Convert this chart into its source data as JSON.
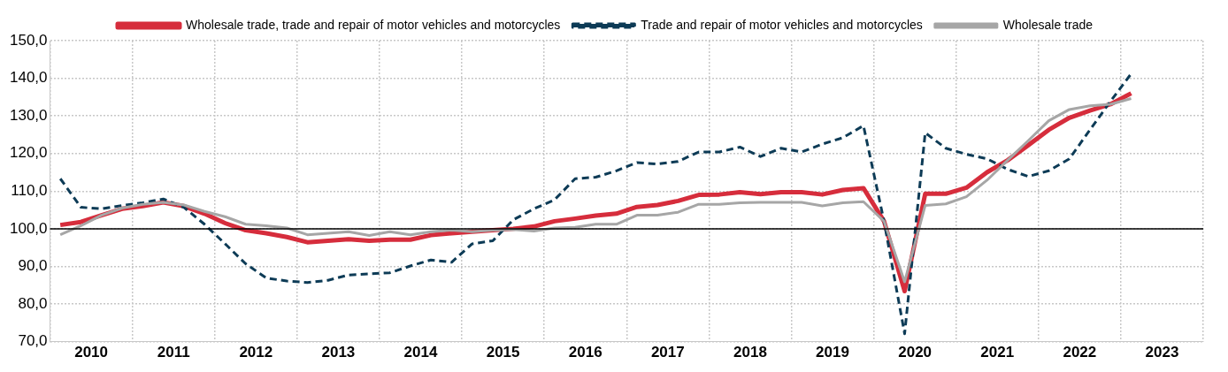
{
  "chart_data": {
    "type": "line",
    "x": [
      2010.125,
      2010.375,
      2010.625,
      2010.875,
      2011.125,
      2011.375,
      2011.625,
      2011.875,
      2012.125,
      2012.375,
      2012.625,
      2012.875,
      2013.125,
      2013.375,
      2013.625,
      2013.875,
      2014.125,
      2014.375,
      2014.625,
      2014.875,
      2015.125,
      2015.375,
      2015.625,
      2015.875,
      2016.125,
      2016.375,
      2016.625,
      2016.875,
      2017.125,
      2017.375,
      2017.625,
      2017.875,
      2018.125,
      2018.375,
      2018.625,
      2018.875,
      2019.125,
      2019.375,
      2019.625,
      2019.875,
      2020.125,
      2020.375,
      2020.625,
      2020.875,
      2021.125,
      2021.375,
      2021.625,
      2021.875,
      2022.125,
      2022.375,
      2022.625,
      2022.875,
      2023.125
    ],
    "series": [
      {
        "name": "Wholesale trade, trade and repair of motor vehicles and motorcycles",
        "color": "#d62d3c",
        "line_style": "solid",
        "values": [
          101.0,
          101.8,
          103.6,
          105.3,
          106.0,
          107.0,
          106.0,
          104.0,
          101.5,
          99.6,
          98.8,
          97.8,
          96.4,
          96.8,
          97.2,
          96.8,
          97.1,
          97.1,
          98.3,
          98.8,
          99.2,
          99.6,
          100.0,
          100.6,
          102.0,
          102.7,
          103.5,
          104.0,
          105.8,
          106.3,
          107.4,
          109.0,
          109.1,
          109.7,
          109.2,
          109.7,
          109.7,
          109.1,
          110.3,
          110.8,
          102.0,
          83.4,
          109.3,
          109.3,
          110.9,
          115.0,
          118.2,
          122.2,
          126.3,
          129.5,
          131.4,
          133.1,
          136.0
        ]
      },
      {
        "name": "Trade and repair of motor vehicles and motorcycles",
        "color": "#0d3b56",
        "line_style": "dashed",
        "values": [
          113.3,
          105.7,
          105.3,
          106.2,
          106.9,
          107.9,
          105.7,
          101.2,
          96.0,
          90.7,
          86.9,
          86.1,
          85.7,
          86.3,
          87.7,
          88.0,
          88.3,
          90.1,
          91.7,
          91.1,
          96.0,
          96.8,
          102.4,
          105.3,
          107.7,
          113.3,
          113.7,
          115.4,
          117.6,
          117.2,
          117.9,
          120.4,
          120.4,
          121.7,
          119.2,
          121.4,
          120.4,
          122.5,
          124.2,
          127.4,
          102.0,
          72.1,
          125.5,
          121.4,
          119.8,
          118.6,
          115.8,
          113.9,
          115.4,
          118.6,
          126.3,
          133.9,
          141.2
        ]
      },
      {
        "name": "Wholesale trade",
        "color": "#a6a6a6",
        "line_style": "solid",
        "values": [
          98.4,
          100.8,
          103.6,
          105.5,
          106.5,
          107.0,
          106.3,
          104.6,
          103.2,
          101.2,
          100.8,
          100.2,
          98.4,
          98.8,
          99.2,
          98.2,
          99.2,
          98.4,
          99.2,
          99.6,
          99.2,
          99.6,
          99.8,
          99.4,
          100.2,
          100.4,
          101.2,
          101.2,
          103.6,
          103.6,
          104.4,
          106.5,
          106.5,
          106.9,
          107.0,
          107.0,
          107.0,
          106.1,
          106.9,
          107.2,
          102.0,
          85.9,
          106.2,
          106.6,
          108.5,
          112.9,
          118.2,
          123.4,
          128.7,
          131.7,
          132.7,
          133.1,
          134.6
        ]
      }
    ],
    "xlim": [
      2010,
      2024
    ],
    "xticks": [
      {
        "value": 2010,
        "label": null
      },
      {
        "value": 2010.5,
        "label": "2010"
      },
      {
        "value": 2011,
        "label": null
      },
      {
        "value": 2011.5,
        "label": "2011"
      },
      {
        "value": 2012,
        "label": null
      },
      {
        "value": 2012.5,
        "label": "2012"
      },
      {
        "value": 2013,
        "label": null
      },
      {
        "value": 2013.5,
        "label": "2013"
      },
      {
        "value": 2014,
        "label": null
      },
      {
        "value": 2014.5,
        "label": "2014"
      },
      {
        "value": 2015,
        "label": null
      },
      {
        "value": 2015.5,
        "label": "2015"
      },
      {
        "value": 2016,
        "label": null
      },
      {
        "value": 2016.5,
        "label": "2016"
      },
      {
        "value": 2017,
        "label": null
      },
      {
        "value": 2017.5,
        "label": "2017"
      },
      {
        "value": 2018,
        "label": null
      },
      {
        "value": 2018.5,
        "label": "2018"
      },
      {
        "value": 2019,
        "label": null
      },
      {
        "value": 2019.5,
        "label": "2019"
      },
      {
        "value": 2020,
        "label": null
      },
      {
        "value": 2020.5,
        "label": "2020"
      },
      {
        "value": 2021,
        "label": null
      },
      {
        "value": 2021.5,
        "label": "2021"
      },
      {
        "value": 2022,
        "label": null
      },
      {
        "value": 2022.5,
        "label": "2022"
      },
      {
        "value": 2023,
        "label": null
      },
      {
        "value": 2023.5,
        "label": "2023"
      },
      {
        "value": 2024,
        "label": null
      }
    ],
    "ylim": [
      70,
      150
    ],
    "yticks": [
      {
        "value": 70,
        "label": "70,0"
      },
      {
        "value": 80,
        "label": "80,0"
      },
      {
        "value": 90,
        "label": "90,0"
      },
      {
        "value": 100,
        "label": "100,0"
      },
      {
        "value": 110,
        "label": "110,0"
      },
      {
        "value": 120,
        "label": "120,0"
      },
      {
        "value": 130,
        "label": "130,0"
      },
      {
        "value": 140,
        "label": "140,0"
      },
      {
        "value": 150,
        "label": "150,0"
      }
    ],
    "ref_lines": [
      {
        "axis": "y",
        "value": 100,
        "color": "#000000"
      }
    ],
    "grid": true,
    "legend": "top",
    "marker": "none"
  }
}
